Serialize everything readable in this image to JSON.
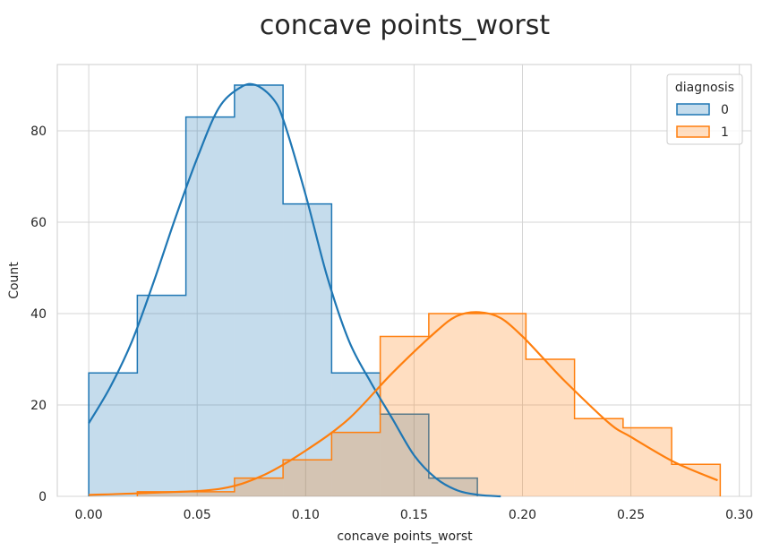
{
  "chart_data": {
    "type": "histogram",
    "title": "concave points_worst",
    "xlabel": "concave points_worst",
    "ylabel": "Count",
    "xlim": [
      -0.0145,
      0.3055
    ],
    "ylim": [
      0,
      94.5
    ],
    "x_ticks": [
      "0.00",
      "0.05",
      "0.10",
      "0.15",
      "0.20",
      "0.25",
      "0.30"
    ],
    "x_tick_values": [
      0,
      0.05,
      0.1,
      0.15,
      0.2,
      0.25,
      0.3
    ],
    "y_ticks": [
      "0",
      "20",
      "40",
      "60",
      "80"
    ],
    "y_tick_values": [
      0,
      20,
      40,
      60,
      80
    ],
    "grid": true,
    "legend": {
      "title": "diagnosis",
      "position": "top-right",
      "entries": [
        "0",
        "1"
      ]
    },
    "bin_edges": [
      0.0,
      0.0224,
      0.0448,
      0.0672,
      0.0896,
      0.112,
      0.1344,
      0.1568,
      0.1792,
      0.2016,
      0.224,
      0.2464,
      0.2688,
      0.2912
    ],
    "series": [
      {
        "name": "0",
        "color": "#1f77b4",
        "fill": "rgba(31,119,180,0.26)",
        "counts": [
          27,
          44,
          83,
          90,
          64,
          27,
          18,
          4,
          0,
          0,
          0,
          0,
          0
        ],
        "kde": {
          "x": [
            0.0,
            0.01,
            0.02,
            0.03,
            0.04,
            0.05,
            0.06,
            0.07,
            0.077,
            0.085,
            0.09,
            0.1,
            0.11,
            0.12,
            0.13,
            0.14,
            0.15,
            0.16,
            0.17,
            0.18,
            0.19
          ],
          "y": [
            16,
            24,
            34,
            47,
            61,
            74,
            85,
            89.5,
            90,
            87,
            82,
            66,
            48,
            34,
            25,
            17,
            9,
            4,
            1.3,
            0.3,
            0
          ]
        }
      },
      {
        "name": "1",
        "color": "#ff7f0e",
        "fill": "rgba(255,127,14,0.26)",
        "counts": [
          0,
          1,
          1,
          4,
          8,
          14,
          35,
          40,
          40,
          30,
          17,
          15,
          7
        ],
        "kde": {
          "x": [
            0.0,
            0.03,
            0.06,
            0.08,
            0.1,
            0.12,
            0.14,
            0.16,
            0.17,
            0.18,
            0.19,
            0.2,
            0.21,
            0.22,
            0.24,
            0.25,
            0.27,
            0.29
          ],
          "y": [
            0.3,
            0.8,
            1.6,
            4.5,
            10,
            17,
            27,
            36,
            39.5,
            40.3,
            39,
            35,
            30,
            25,
            16,
            13,
            7.5,
            3.5
          ]
        }
      }
    ]
  }
}
